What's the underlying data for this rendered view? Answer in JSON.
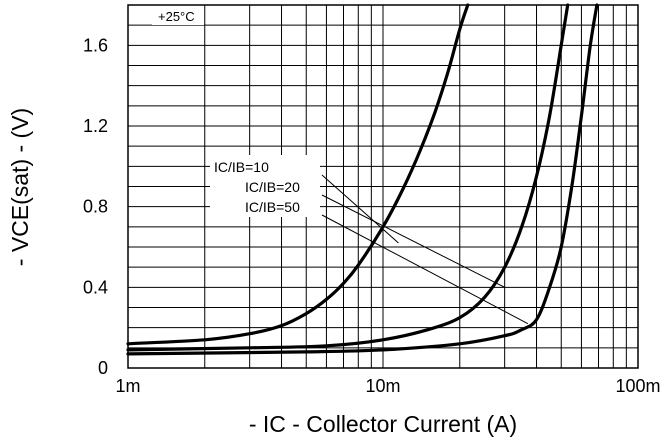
{
  "chart_data": {
    "type": "line",
    "title": "",
    "annotation": "+25°C",
    "xlabel": "- IC - Collector Current (A)",
    "ylabel": "- VCE(sat) - (V)",
    "x_scale": "log",
    "xlim": [
      0.001,
      0.1
    ],
    "ylim": [
      0,
      1.8
    ],
    "x_ticks": [
      {
        "value": 0.001,
        "label": "1m"
      },
      {
        "value": 0.01,
        "label": "10m"
      },
      {
        "value": 0.1,
        "label": "100m"
      }
    ],
    "y_ticks": [
      {
        "value": 0,
        "label": "0"
      },
      {
        "value": 0.4,
        "label": "0.4"
      },
      {
        "value": 0.8,
        "label": "0.8"
      },
      {
        "value": 1.2,
        "label": "1.2"
      },
      {
        "value": 1.6,
        "label": "1.6"
      }
    ],
    "grid": true,
    "series": [
      {
        "name": "IC/IB=10",
        "x": [
          0.001,
          0.002,
          0.003,
          0.004,
          0.005,
          0.006,
          0.007,
          0.008,
          0.01,
          0.012,
          0.014,
          0.016,
          0.018,
          0.02,
          0.0215
        ],
        "y": [
          0.12,
          0.14,
          0.17,
          0.21,
          0.27,
          0.34,
          0.42,
          0.51,
          0.7,
          0.89,
          1.08,
          1.27,
          1.47,
          1.68,
          1.8
        ]
      },
      {
        "name": "IC/IB=20",
        "x": [
          0.001,
          0.003,
          0.006,
          0.01,
          0.015,
          0.02,
          0.025,
          0.03,
          0.035,
          0.04,
          0.045,
          0.05,
          0.053
        ],
        "y": [
          0.09,
          0.1,
          0.11,
          0.14,
          0.19,
          0.25,
          0.35,
          0.5,
          0.7,
          0.95,
          1.25,
          1.6,
          1.8
        ]
      },
      {
        "name": "IC/IB=50",
        "x": [
          0.001,
          0.005,
          0.01,
          0.02,
          0.03,
          0.035,
          0.04,
          0.045,
          0.05,
          0.055,
          0.06,
          0.065,
          0.069
        ],
        "y": [
          0.07,
          0.08,
          0.09,
          0.12,
          0.16,
          0.19,
          0.24,
          0.4,
          0.6,
          0.9,
          1.25,
          1.6,
          1.8
        ]
      }
    ],
    "legend": [
      "IC/IB=10",
      "IC/IB=20",
      "IC/IB=50"
    ]
  }
}
